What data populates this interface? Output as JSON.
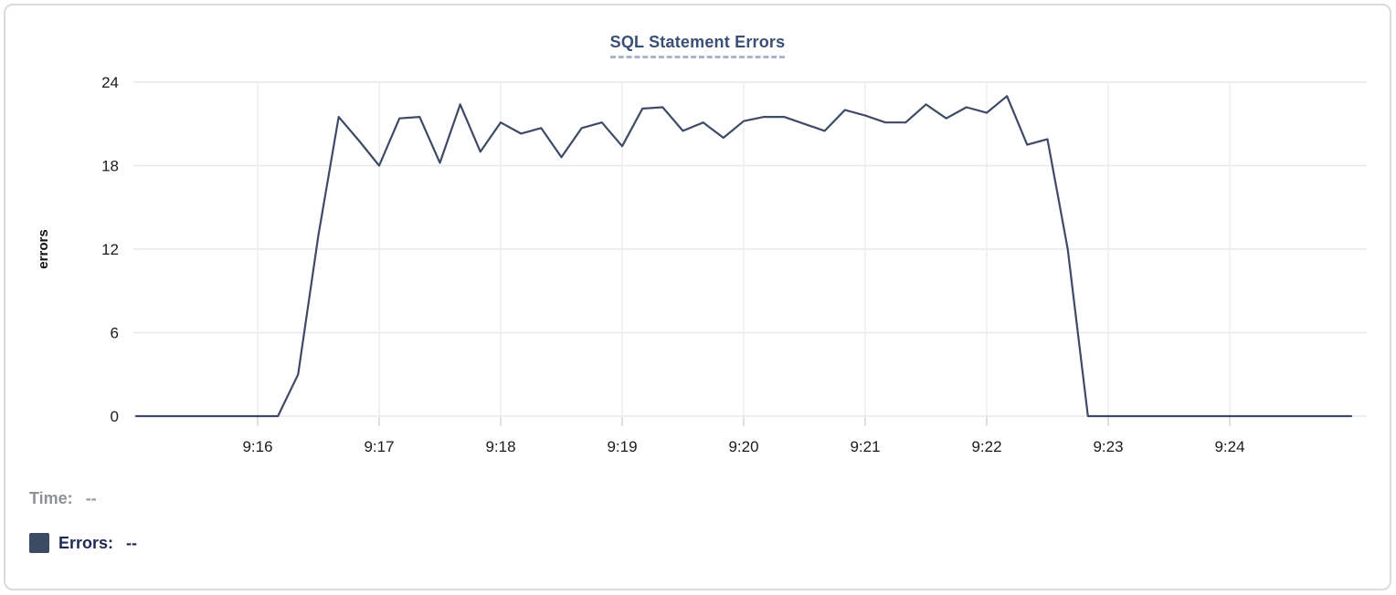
{
  "legend": {
    "time_label": "Time:",
    "time_value": "--",
    "series_label": "Errors:",
    "series_value": "--",
    "swatch_color": "#3d4a63"
  },
  "chart_data": {
    "type": "line",
    "title": "SQL Statement Errors",
    "xlabel": "",
    "ylabel": "errors",
    "ylim": [
      0,
      24
    ],
    "y_ticks": [
      24,
      18,
      12,
      6,
      0
    ],
    "x_ticks": [
      "9:16",
      "9:17",
      "9:18",
      "9:19",
      "9:20",
      "9:21",
      "9:22",
      "9:23",
      "9:24"
    ],
    "x_range": [
      "9:15:00",
      "9:25:00"
    ],
    "x_interval_seconds": 10,
    "grid": true,
    "legend_position": "bottom-left",
    "line_color": "#3e4a66",
    "grid_color_h": "#e8e8e8",
    "grid_color_v": "#ededed",
    "tick_stub_color": "#d6d6d6",
    "tick_text_color": "#1b1b1b",
    "series": [
      {
        "name": "Errors",
        "values": [
          0,
          0,
          0,
          0,
          0,
          0,
          0,
          0,
          3,
          13,
          21.5,
          19.8,
          18,
          21.4,
          21.5,
          18.2,
          22.4,
          19,
          21.1,
          20.3,
          20.7,
          18.6,
          20.7,
          21.1,
          19.4,
          22.1,
          22.2,
          20.5,
          21.1,
          20,
          21.2,
          21.5,
          21.5,
          21,
          20.5,
          22,
          21.6,
          21.1,
          21.1,
          22.4,
          21.4,
          22.2,
          21.8,
          23,
          19.5,
          19.9,
          12,
          0,
          0,
          0,
          0,
          0,
          0,
          0,
          0,
          0,
          0,
          0,
          0,
          0,
          0
        ]
      }
    ]
  }
}
